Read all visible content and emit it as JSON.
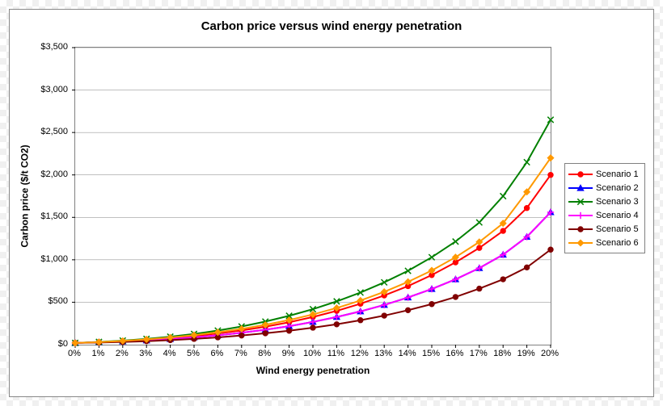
{
  "chart": {
    "type": "line",
    "title": "Carbon price versus wind energy penetration",
    "title_fontsize": 15,
    "title_fontweight": "bold",
    "xlabel": "Wind energy penetration",
    "ylabel": "Carbon price ($/t CO2)",
    "label_fontsize": 12,
    "label_fontweight": "bold",
    "tick_fontsize": 11,
    "background_color": "#ffffff",
    "panel_border_color": "#888888",
    "plot_border_color": "#808080",
    "gridline_color": "#808080",
    "gridline_width": 0.5,
    "xlim": [
      0,
      20
    ],
    "ylim": [
      0,
      3500
    ],
    "xtick_step": 1,
    "ytick_step": 500,
    "xtick_labels": [
      "0%",
      "1%",
      "2%",
      "3%",
      "4%",
      "5%",
      "6%",
      "7%",
      "8%",
      "9%",
      "10%",
      "11%",
      "12%",
      "13%",
      "14%",
      "15%",
      "16%",
      "17%",
      "18%",
      "19%",
      "20%"
    ],
    "ytick_labels": [
      "$0",
      "$500",
      "$1,000",
      "$1,500",
      "$2,000",
      "$2,500",
      "$3,000",
      "$3,500"
    ],
    "line_width": 2,
    "marker_size": 3.2,
    "x_values": [
      0,
      1,
      2,
      3,
      4,
      5,
      6,
      7,
      8,
      9,
      10,
      11,
      12,
      13,
      14,
      15,
      16,
      17,
      18,
      19,
      20
    ],
    "series": [
      {
        "name": "Scenario 1",
        "color": "#ff0000",
        "marker": "circle",
        "marker_fill": "#ff0000",
        "values": [
          20,
          30,
          42,
          58,
          78,
          102,
          132,
          168,
          212,
          264,
          326,
          398,
          482,
          580,
          690,
          820,
          970,
          1140,
          1340,
          1610,
          2000
        ]
      },
      {
        "name": "Scenario 2",
        "color": "#0000ff",
        "marker": "triangle",
        "marker_fill": "#0000ff",
        "values": [
          20,
          28,
          38,
          50,
          66,
          86,
          110,
          140,
          176,
          218,
          268,
          326,
          392,
          468,
          556,
          656,
          770,
          902,
          1060,
          1270,
          1560
        ]
      },
      {
        "name": "Scenario 3",
        "color": "#008000",
        "marker": "x",
        "marker_fill": "#008000",
        "values": [
          20,
          32,
          48,
          68,
          94,
          126,
          166,
          214,
          272,
          340,
          418,
          510,
          614,
          734,
          870,
          1030,
          1215,
          1440,
          1750,
          2150,
          2650
        ]
      },
      {
        "name": "Scenario 4",
        "color": "#ff00ff",
        "marker": "plus",
        "marker_fill": "#ff00ff",
        "values": [
          20,
          28,
          38,
          50,
          66,
          86,
          110,
          140,
          176,
          218,
          268,
          326,
          392,
          468,
          556,
          656,
          770,
          902,
          1060,
          1270,
          1560
        ]
      },
      {
        "name": "Scenario 5",
        "color": "#800000",
        "marker": "circle",
        "marker_fill": "#800000",
        "values": [
          20,
          25,
          32,
          41,
          53,
          68,
          86,
          108,
          134,
          164,
          200,
          240,
          288,
          342,
          406,
          478,
          562,
          660,
          770,
          910,
          1120
        ]
      },
      {
        "name": "Scenario 6",
        "color": "#ff9900",
        "marker": "diamond",
        "marker_fill": "#ff9900",
        "values": [
          20,
          30,
          44,
          62,
          84,
          112,
          146,
          186,
          234,
          290,
          356,
          432,
          520,
          622,
          740,
          874,
          1030,
          1210,
          1430,
          1800,
          2200
        ]
      }
    ],
    "legend": {
      "position": "right",
      "border_color": "#808080",
      "background": "#ffffff",
      "fontsize": 11,
      "order": [
        "Scenario 1",
        "Scenario 2",
        "Scenario 3",
        "Scenario 4",
        "Scenario 5",
        "Scenario 6"
      ]
    }
  }
}
